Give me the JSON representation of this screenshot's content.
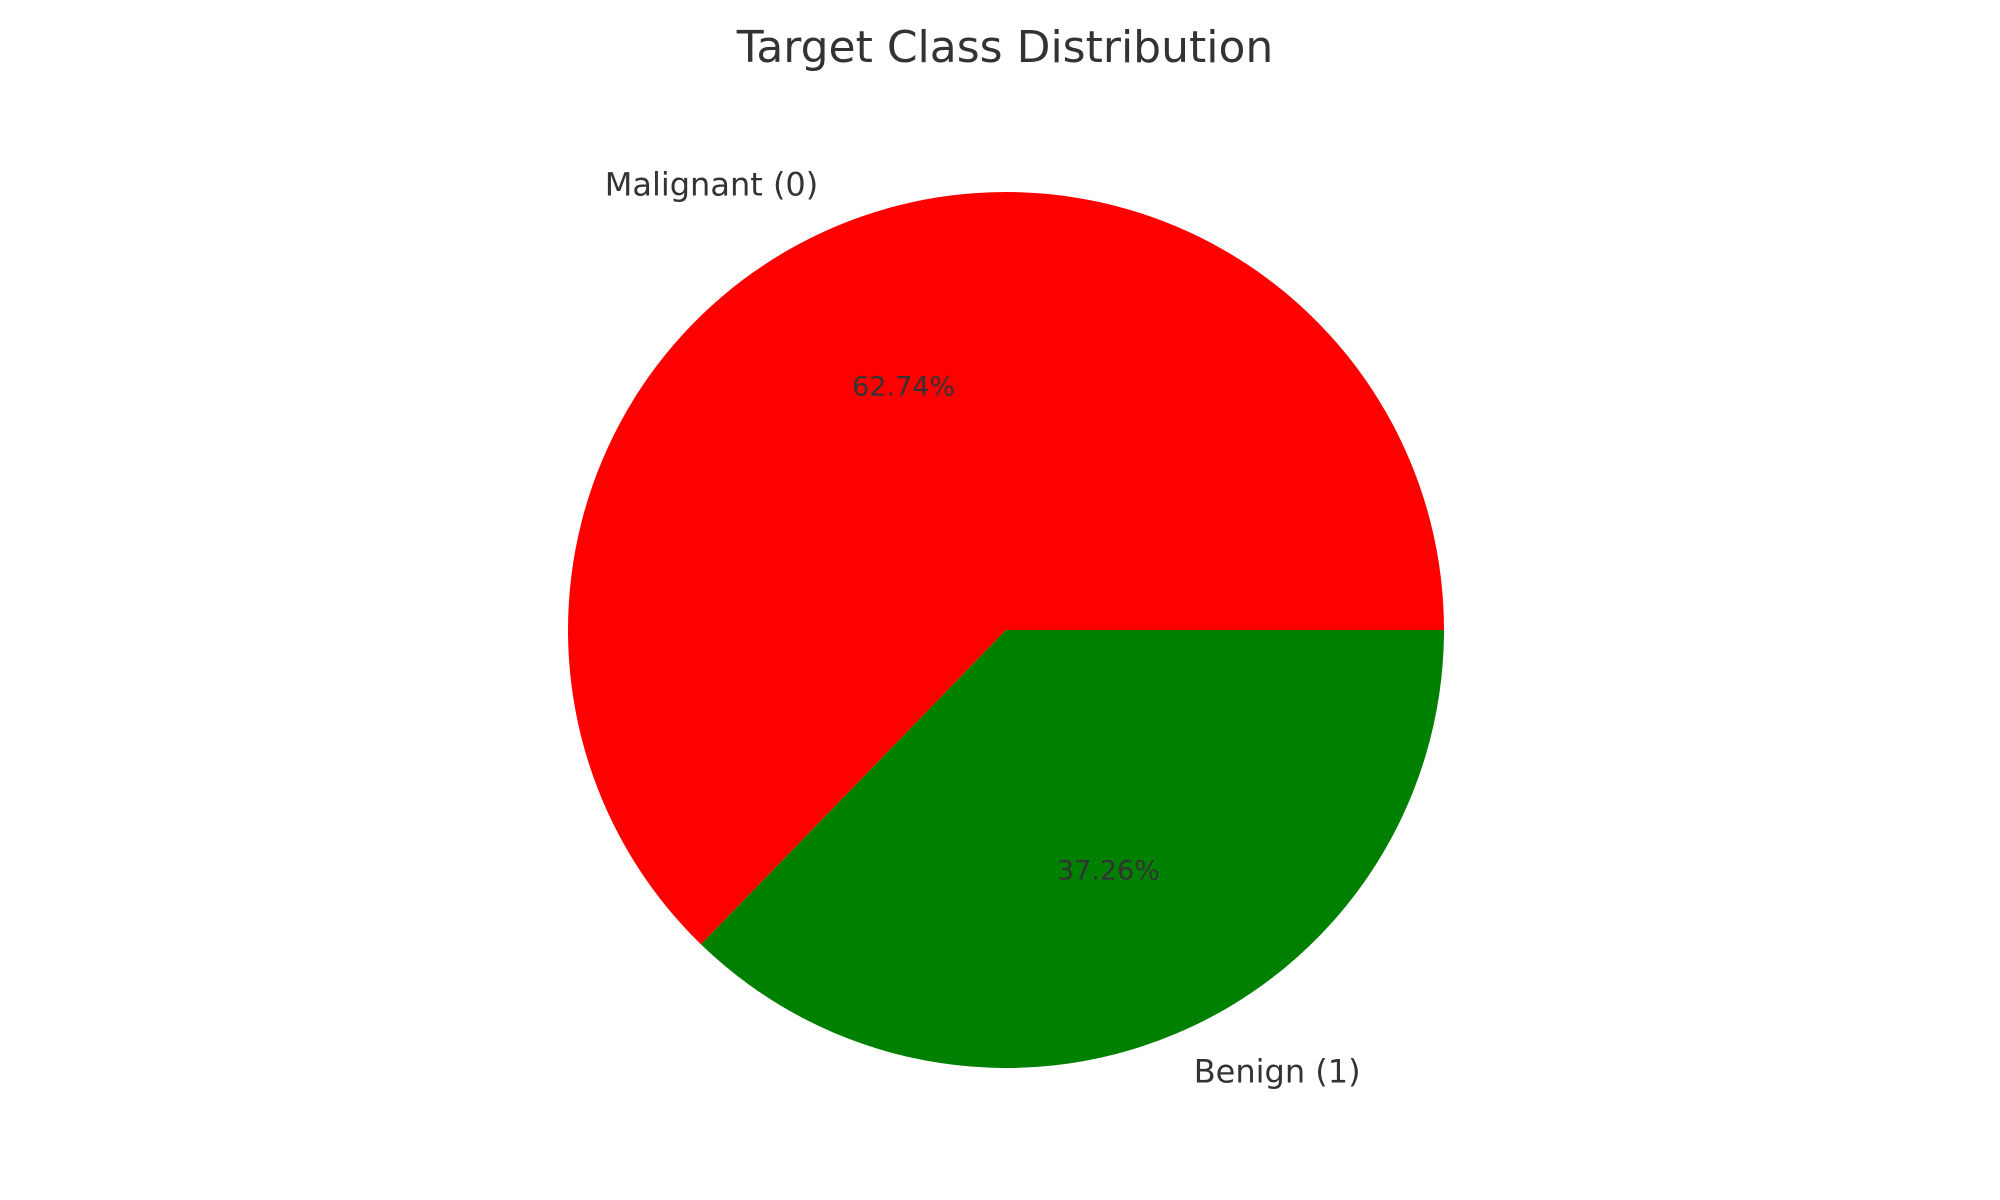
{
  "chart_data": {
    "type": "pie",
    "title": "Target Class Distribution",
    "slices": [
      {
        "label": "Malignant (0)",
        "value": 62.74,
        "pct_label": "62.74%",
        "color": "#ff0000"
      },
      {
        "label": "Benign (1)",
        "value": 37.26,
        "pct_label": "37.26%",
        "color": "#008000"
      }
    ],
    "start_angle": "3 o'clock",
    "direction": "counterclockwise"
  }
}
